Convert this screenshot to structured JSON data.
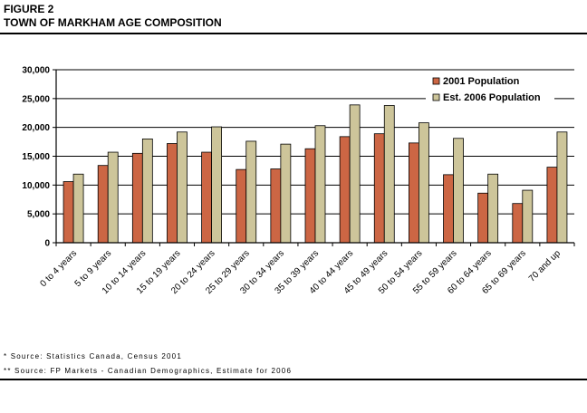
{
  "header": {
    "figure_label": "FIGURE 2",
    "title": "TOWN OF MARKHAM AGE COMPOSITION"
  },
  "chart_data": {
    "type": "bar",
    "categories": [
      "0 to 4 years",
      "5 to 9 years",
      "10 to 14 years",
      "15 to 19 years",
      "20 to 24 years",
      "25 to 29 years",
      "30 to 34 years",
      "35 to 39 years",
      "40 to 44 years",
      "45 to 49 years",
      "50 to 54 years",
      "55 to 59 years",
      "60 to 64 years",
      "65 to 69 years",
      "70 and up"
    ],
    "series": [
      {
        "name": "2001 Population",
        "color": "#cc6644",
        "values": [
          10600,
          13400,
          15500,
          17200,
          15700,
          12700,
          12800,
          16300,
          18400,
          18900,
          17300,
          11800,
          8600,
          6800,
          13100
        ]
      },
      {
        "name": "Est. 2006 Population",
        "color": "#cdc59a",
        "values": [
          11900,
          15700,
          18000,
          19200,
          20100,
          17600,
          17100,
          20300,
          23900,
          23800,
          20800,
          18100,
          11900,
          9100,
          19200
        ]
      }
    ],
    "ylim": [
      0,
      30000
    ],
    "yticks": [
      0,
      5000,
      10000,
      15000,
      20000,
      25000,
      30000
    ],
    "ytick_labels": [
      "0",
      "5,000",
      "10,000",
      "15,000",
      "20,000",
      "25,000",
      "30,000"
    ],
    "grid": true,
    "legend_position": "top-right"
  },
  "footer": {
    "source_1": "* Source: Statistics Canada, Census 2001",
    "source_2": "** Source: FP Markets - Canadian Demographics, Estimate for 2006"
  }
}
